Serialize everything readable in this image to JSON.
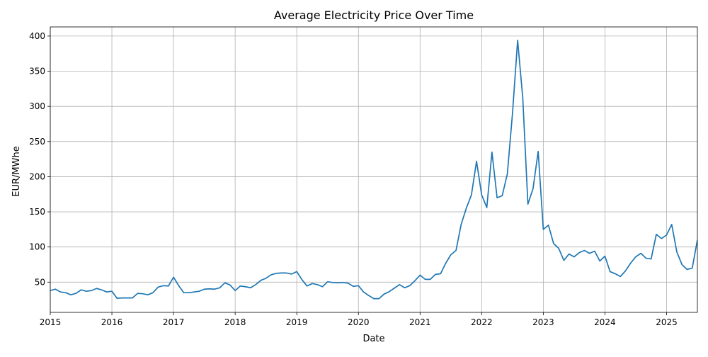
{
  "chart_data": {
    "type": "line",
    "title": "Average Electricity Price Over Time",
    "xlabel": "Date",
    "ylabel": "EUR/MWhe",
    "grid": true,
    "line_color": "#1f77b4",
    "x_ticks": [
      "2015",
      "2016",
      "2017",
      "2018",
      "2019",
      "2020",
      "2021",
      "2022",
      "2023",
      "2024",
      "2025"
    ],
    "y_ticks": [
      50,
      100,
      150,
      200,
      250,
      300,
      350,
      400
    ],
    "xlim": [
      "2015-01",
      "2025-07"
    ],
    "ylim": [
      7,
      413
    ],
    "series": [
      {
        "x": [
          "2015-01",
          "2015-02",
          "2015-03",
          "2015-04",
          "2015-05",
          "2015-06",
          "2015-07",
          "2015-08",
          "2015-09",
          "2015-10",
          "2015-11",
          "2015-12",
          "2016-01",
          "2016-02",
          "2016-03",
          "2016-04",
          "2016-05",
          "2016-06",
          "2016-07",
          "2016-08",
          "2016-09",
          "2016-10",
          "2016-11",
          "2016-12",
          "2017-01",
          "2017-02",
          "2017-03",
          "2017-04",
          "2017-05",
          "2017-06",
          "2017-07",
          "2017-08",
          "2017-09",
          "2017-10",
          "2017-11",
          "2017-12",
          "2018-01",
          "2018-02",
          "2018-03",
          "2018-04",
          "2018-05",
          "2018-06",
          "2018-07",
          "2018-08",
          "2018-09",
          "2018-10",
          "2018-11",
          "2018-12",
          "2019-01",
          "2019-02",
          "2019-03",
          "2019-04",
          "2019-05",
          "2019-06",
          "2019-07",
          "2019-08",
          "2019-09",
          "2019-10",
          "2019-11",
          "2019-12",
          "2020-01",
          "2020-02",
          "2020-03",
          "2020-04",
          "2020-05",
          "2020-06",
          "2020-07",
          "2020-08",
          "2020-09",
          "2020-10",
          "2020-11",
          "2020-12",
          "2021-01",
          "2021-02",
          "2021-03",
          "2021-04",
          "2021-05",
          "2021-06",
          "2021-07",
          "2021-08",
          "2021-09",
          "2021-10",
          "2021-11",
          "2021-12",
          "2022-01",
          "2022-02",
          "2022-03",
          "2022-04",
          "2022-05",
          "2022-06",
          "2022-07",
          "2022-08",
          "2022-09",
          "2022-10",
          "2022-11",
          "2022-12",
          "2023-01",
          "2023-02",
          "2023-03",
          "2023-04",
          "2023-05",
          "2023-06",
          "2023-07",
          "2023-08",
          "2023-09",
          "2023-10",
          "2023-11",
          "2023-12",
          "2024-01",
          "2024-02",
          "2024-03",
          "2024-04",
          "2024-05",
          "2024-06",
          "2024-07",
          "2024-08",
          "2024-09",
          "2024-10",
          "2024-11",
          "2024-12",
          "2025-01",
          "2025-02",
          "2025-03",
          "2025-04",
          "2025-05",
          "2025-06",
          "2025-07"
        ],
        "values": [
          38,
          40,
          36,
          35,
          32,
          34,
          39,
          37,
          38,
          41,
          39,
          36,
          37,
          27,
          27.5,
          27.5,
          27.5,
          34,
          33.5,
          32,
          35,
          43,
          45,
          44.5,
          57,
          45,
          35,
          35,
          36,
          37,
          40,
          40.5,
          40,
          42,
          49,
          46,
          38,
          44.5,
          43.5,
          42,
          46.5,
          52.5,
          55.5,
          60.5,
          62.5,
          63,
          63,
          61.5,
          65,
          53.5,
          44.5,
          48,
          46.5,
          43.5,
          50.5,
          49.5,
          49,
          49.5,
          48.5,
          44,
          45,
          36,
          31,
          26.5,
          26.5,
          33,
          36.5,
          41.5,
          46.5,
          42,
          45,
          52,
          60,
          54,
          54,
          61,
          62,
          77,
          89,
          95,
          132,
          155,
          174,
          222,
          174,
          156,
          235,
          170,
          173,
          204,
          290,
          394,
          312,
          161,
          183,
          236,
          125,
          131,
          105,
          98,
          81,
          90,
          86,
          92,
          95,
          91,
          94,
          80,
          87,
          65,
          62,
          58,
          66,
          77,
          86,
          91,
          84,
          83,
          118,
          112,
          117,
          132,
          93,
          75,
          68,
          70,
          110
        ]
      }
    ]
  }
}
